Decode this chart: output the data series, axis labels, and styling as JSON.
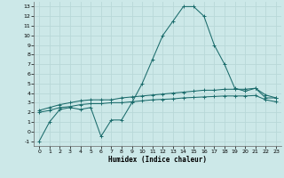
{
  "xlabel": "Humidex (Indice chaleur)",
  "background_color": "#cce8e8",
  "grid_color": "#b8d8d8",
  "line_color": "#1a6b6b",
  "xlim": [
    -0.5,
    23.5
  ],
  "ylim": [
    -1.5,
    13.5
  ],
  "xticks": [
    0,
    1,
    2,
    3,
    4,
    5,
    6,
    7,
    8,
    9,
    10,
    11,
    12,
    13,
    14,
    15,
    16,
    17,
    18,
    19,
    20,
    21,
    22,
    23
  ],
  "yticks": [
    -1,
    0,
    1,
    2,
    3,
    4,
    5,
    6,
    7,
    8,
    9,
    10,
    11,
    12,
    13
  ],
  "line1_x": [
    0,
    1,
    2,
    3,
    4,
    5,
    6,
    7,
    8,
    9,
    10,
    11,
    12,
    13,
    14,
    15,
    16,
    17,
    18,
    19,
    20,
    21,
    22,
    23
  ],
  "line1_y": [
    -1,
    1,
    2.3,
    2.5,
    2.3,
    2.5,
    -0.5,
    1.2,
    1.2,
    3,
    5,
    7.5,
    10,
    11.5,
    13,
    13,
    12,
    9,
    7,
    4.5,
    4.2,
    4.5,
    3.5,
    3.5
  ],
  "line2_x": [
    0,
    1,
    2,
    3,
    4,
    5,
    6,
    7,
    8,
    9,
    10,
    11,
    12,
    13,
    14,
    15,
    16,
    17,
    18,
    19,
    20,
    21,
    22,
    23
  ],
  "line2_y": [
    2.2,
    2.5,
    2.8,
    3.0,
    3.2,
    3.3,
    3.3,
    3.3,
    3.5,
    3.6,
    3.7,
    3.8,
    3.9,
    4.0,
    4.1,
    4.2,
    4.3,
    4.3,
    4.4,
    4.4,
    4.4,
    4.5,
    3.8,
    3.5
  ],
  "line3_x": [
    0,
    1,
    2,
    3,
    4,
    5,
    6,
    7,
    8,
    9,
    10,
    11,
    12,
    13,
    14,
    15,
    16,
    17,
    18,
    19,
    20,
    21,
    22,
    23
  ],
  "line3_y": [
    2.0,
    2.2,
    2.5,
    2.6,
    2.8,
    2.9,
    2.9,
    3.0,
    3.0,
    3.1,
    3.2,
    3.3,
    3.35,
    3.4,
    3.5,
    3.55,
    3.6,
    3.65,
    3.7,
    3.7,
    3.7,
    3.75,
    3.3,
    3.1
  ]
}
